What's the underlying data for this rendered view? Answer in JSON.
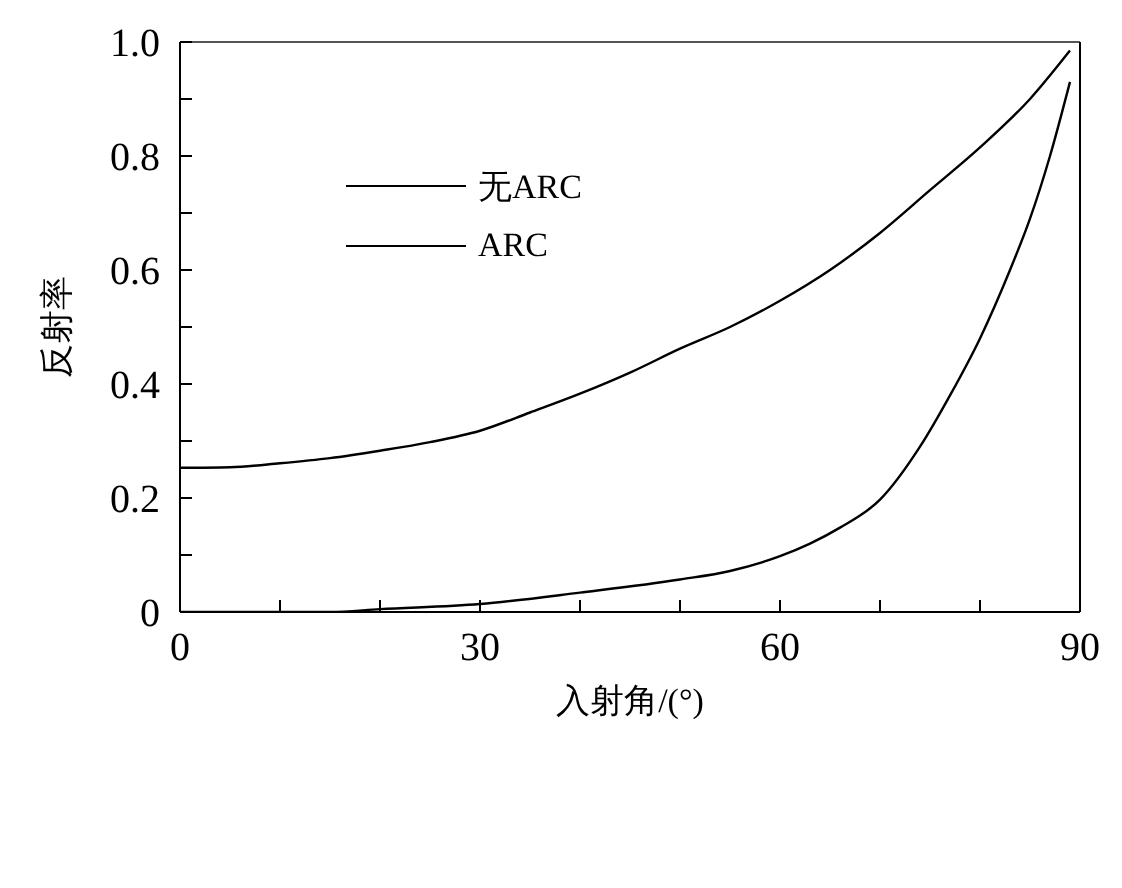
{
  "chart_data": {
    "type": "line",
    "xlabel": "入射角/(°)",
    "ylabel": "反射率",
    "xlim": [
      0,
      90
    ],
    "xticks": [
      0,
      {
        "value": 10,
        "label": null
      },
      {
        "value": 20,
        "label": null
      },
      30,
      {
        "value": 40,
        "label": null
      },
      {
        "value": 50,
        "label": null
      },
      60,
      {
        "value": 70,
        "label": null
      },
      {
        "value": 80,
        "label": null
      },
      90
    ],
    "ylim": [
      0,
      1.0
    ],
    "yticks": [
      0,
      {
        "value": 0.1,
        "label": null
      },
      0.2,
      {
        "value": 0.3,
        "label": null
      },
      0.4,
      {
        "value": 0.5,
        "label": null
      },
      0.6,
      {
        "value": 0.7,
        "label": null
      },
      0.8,
      {
        "value": 0.9,
        "label": null
      },
      {
        "value": 1.0,
        "label": "1.0"
      }
    ],
    "grid": false,
    "legend": "top left",
    "marker": "none",
    "line_style": "solid",
    "series": [
      {
        "name": "无ARC",
        "color": "#000000",
        "x": [
          0,
          5,
          10,
          15,
          20,
          25,
          30,
          35,
          40,
          45,
          50,
          55,
          60,
          65,
          70,
          75,
          80,
          85,
          89
        ],
        "values": [
          0.253,
          0.254,
          0.261,
          0.27,
          0.283,
          0.298,
          0.318,
          0.35,
          0.383,
          0.42,
          0.462,
          0.5,
          0.546,
          0.6,
          0.665,
          0.74,
          0.815,
          0.9,
          0.985
        ]
      },
      {
        "name": "ARC",
        "color": "#000000",
        "x": [
          0,
          10,
          15,
          20,
          30,
          40,
          50,
          55,
          60,
          63,
          66,
          70,
          74,
          77,
          80,
          83,
          85,
          87,
          89
        ],
        "values": [
          0,
          0,
          0,
          0.005,
          0.014,
          0.034,
          0.057,
          0.072,
          0.098,
          0.12,
          0.148,
          0.197,
          0.29,
          0.38,
          0.48,
          0.6,
          0.69,
          0.8,
          0.93
        ]
      }
    ]
  }
}
